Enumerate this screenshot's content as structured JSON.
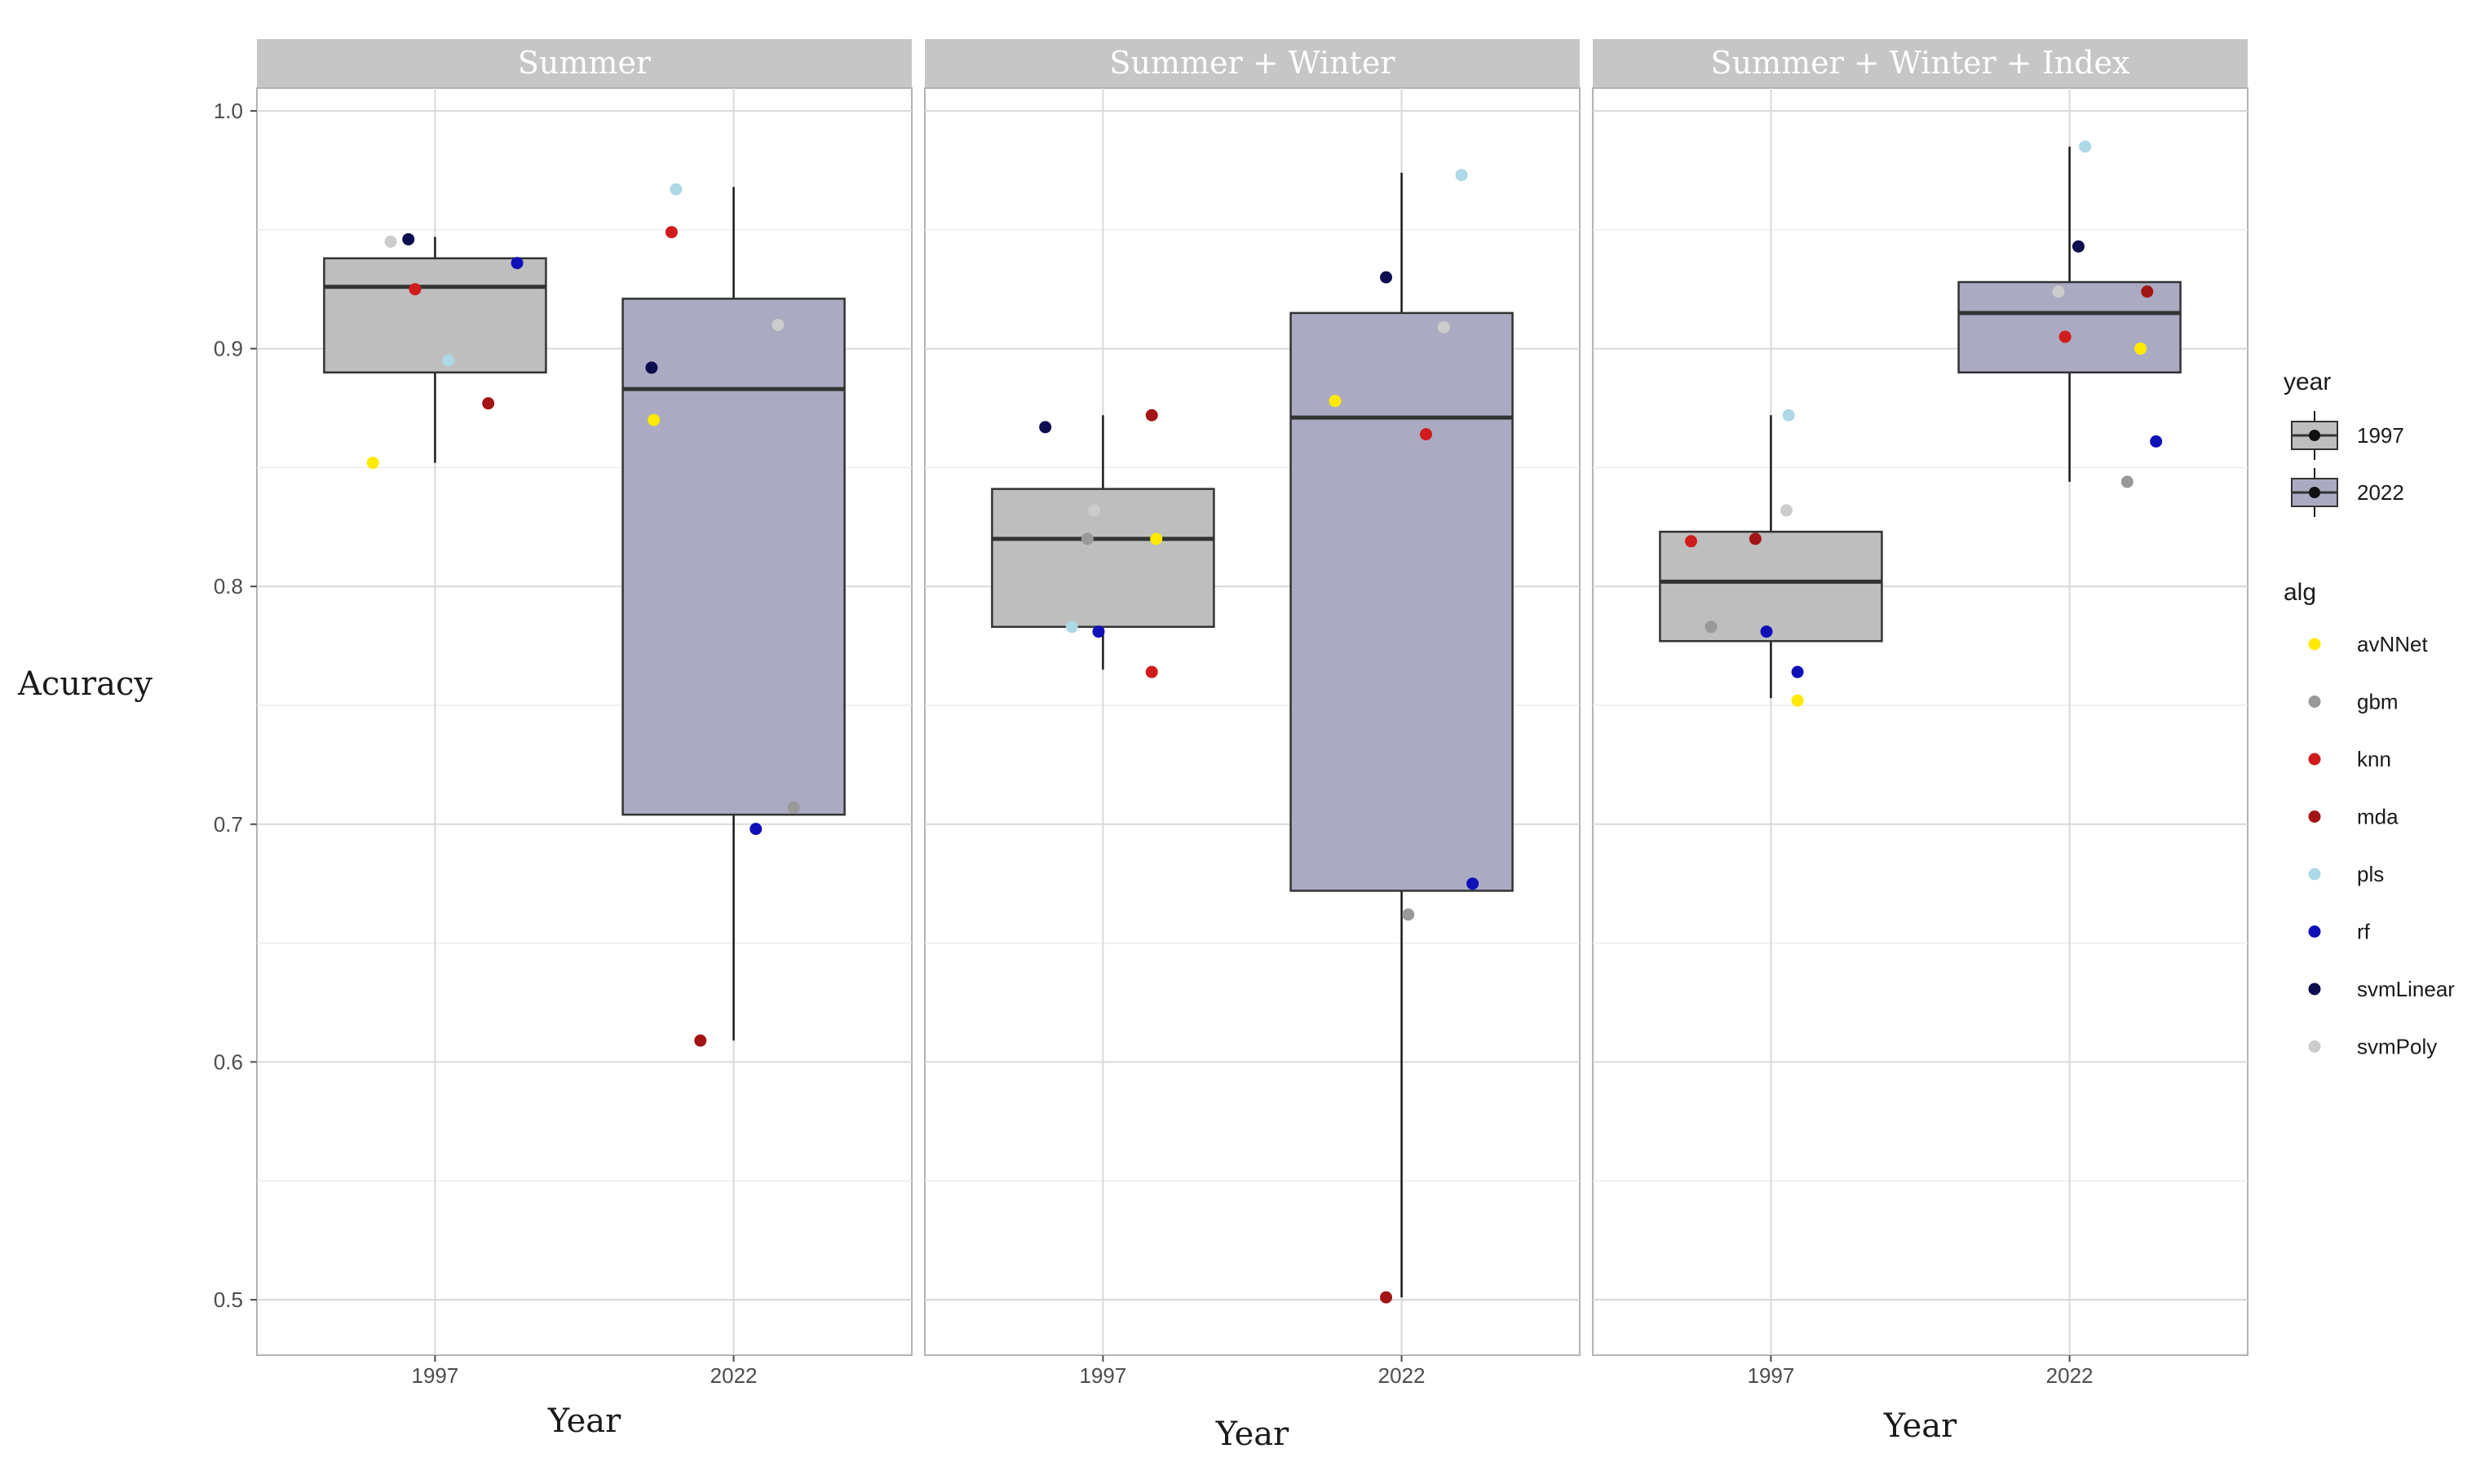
{
  "chart_data": {
    "type": "boxplot",
    "ylabel": "Acuracy",
    "xlabel": "Year",
    "ylim": [
      0.475,
      1.01
    ],
    "y_ticks": [
      "0.5",
      "0.6",
      "0.7",
      "0.8",
      "0.9",
      "1.0"
    ],
    "categories": [
      "1997",
      "2022"
    ],
    "grid": true,
    "panels": [
      {
        "title": "Summer",
        "boxes": [
          {
            "year": "1997",
            "min": 0.852,
            "q1": 0.89,
            "median": 0.926,
            "q3": 0.938,
            "max": 0.947
          },
          {
            "year": "2022",
            "min": 0.609,
            "q1": 0.704,
            "median": 0.883,
            "q3": 0.921,
            "max": 0.968
          }
        ],
        "points": [
          {
            "year": "1997",
            "alg": "avNNet",
            "value": 0.852,
            "jitter": -0.28
          },
          {
            "year": "1997",
            "alg": "svmPoly",
            "value": 0.945,
            "jitter": -0.2
          },
          {
            "year": "1997",
            "alg": "svmLinear",
            "value": 0.946,
            "jitter": -0.12
          },
          {
            "year": "1997",
            "alg": "knn",
            "value": 0.925,
            "jitter": -0.09
          },
          {
            "year": "1997",
            "alg": "pls",
            "value": 0.895,
            "jitter": 0.06
          },
          {
            "year": "1997",
            "alg": "mda",
            "value": 0.877,
            "jitter": 0.24
          },
          {
            "year": "1997",
            "alg": "rf",
            "value": 0.936,
            "jitter": 0.37
          },
          {
            "year": "2022",
            "alg": "svmLinear",
            "value": 0.892,
            "jitter": -0.37
          },
          {
            "year": "2022",
            "alg": "avNNet",
            "value": 0.87,
            "jitter": -0.36
          },
          {
            "year": "2022",
            "alg": "knn",
            "value": 0.949,
            "jitter": -0.28
          },
          {
            "year": "2022",
            "alg": "pls",
            "value": 0.967,
            "jitter": -0.26
          },
          {
            "year": "2022",
            "alg": "mda",
            "value": 0.609,
            "jitter": -0.15
          },
          {
            "year": "2022",
            "alg": "rf",
            "value": 0.698,
            "jitter": 0.1
          },
          {
            "year": "2022",
            "alg": "svmPoly",
            "value": 0.91,
            "jitter": 0.2
          },
          {
            "year": "2022",
            "alg": "gbm",
            "value": 0.707,
            "jitter": 0.27
          }
        ]
      },
      {
        "title": "Summer + Winter",
        "boxes": [
          {
            "year": "1997",
            "min": 0.765,
            "q1": 0.783,
            "median": 0.82,
            "q3": 0.841,
            "max": 0.872
          },
          {
            "year": "2022",
            "min": 0.501,
            "q1": 0.672,
            "median": 0.871,
            "q3": 0.915,
            "max": 0.974
          }
        ],
        "points": [
          {
            "year": "1997",
            "alg": "svmLinear",
            "value": 0.867,
            "jitter": -0.26
          },
          {
            "year": "1997",
            "alg": "pls",
            "value": 0.783,
            "jitter": -0.14
          },
          {
            "year": "1997",
            "alg": "gbm",
            "value": 0.82,
            "jitter": -0.07
          },
          {
            "year": "1997",
            "alg": "svmPoly",
            "value": 0.832,
            "jitter": -0.04
          },
          {
            "year": "1997",
            "alg": "rf",
            "value": 0.781,
            "jitter": -0.02
          },
          {
            "year": "1997",
            "alg": "knn",
            "value": 0.764,
            "jitter": 0.22
          },
          {
            "year": "1997",
            "alg": "mda",
            "value": 0.872,
            "jitter": 0.22
          },
          {
            "year": "1997",
            "alg": "avNNet",
            "value": 0.82,
            "jitter": 0.24
          },
          {
            "year": "2022",
            "alg": "avNNet",
            "value": 0.878,
            "jitter": -0.3
          },
          {
            "year": "2022",
            "alg": "mda",
            "value": 0.501,
            "jitter": -0.07
          },
          {
            "year": "2022",
            "alg": "svmLinear",
            "value": 0.93,
            "jitter": -0.07
          },
          {
            "year": "2022",
            "alg": "gbm",
            "value": 0.662,
            "jitter": 0.03
          },
          {
            "year": "2022",
            "alg": "knn",
            "value": 0.864,
            "jitter": 0.11
          },
          {
            "year": "2022",
            "alg": "svmPoly",
            "value": 0.909,
            "jitter": 0.19
          },
          {
            "year": "2022",
            "alg": "pls",
            "value": 0.973,
            "jitter": 0.27
          },
          {
            "year": "2022",
            "alg": "rf",
            "value": 0.675,
            "jitter": 0.32
          }
        ]
      },
      {
        "title": "Summer + Winter + Index",
        "boxes": [
          {
            "year": "1997",
            "min": 0.753,
            "q1": 0.777,
            "median": 0.802,
            "q3": 0.823,
            "max": 0.872
          },
          {
            "year": "2022",
            "min": 0.844,
            "q1": 0.89,
            "median": 0.915,
            "q3": 0.928,
            "max": 0.985
          }
        ],
        "points": [
          {
            "year": "1997",
            "alg": "knn",
            "value": 0.819,
            "jitter": -0.36
          },
          {
            "year": "1997",
            "alg": "gbm",
            "value": 0.783,
            "jitter": -0.27
          },
          {
            "year": "1997",
            "alg": "mda",
            "value": 0.82,
            "jitter": -0.07
          },
          {
            "year": "1997",
            "alg": "rf",
            "value": 0.781,
            "jitter": -0.02
          },
          {
            "year": "1997",
            "alg": "svmPoly",
            "value": 0.832,
            "jitter": 0.07
          },
          {
            "year": "1997",
            "alg": "pls",
            "value": 0.872,
            "jitter": 0.08
          },
          {
            "year": "1997",
            "alg": "avNNet",
            "value": 0.752,
            "jitter": 0.12
          },
          {
            "year": "1997",
            "alg": "rf",
            "value": 0.764,
            "jitter": 0.12
          },
          {
            "year": "2022",
            "alg": "svmPoly",
            "value": 0.924,
            "jitter": -0.05
          },
          {
            "year": "2022",
            "alg": "knn",
            "value": 0.905,
            "jitter": -0.02
          },
          {
            "year": "2022",
            "alg": "svmLinear",
            "value": 0.943,
            "jitter": 0.04
          },
          {
            "year": "2022",
            "alg": "pls",
            "value": 0.985,
            "jitter": 0.07
          },
          {
            "year": "2022",
            "alg": "gbm",
            "value": 0.844,
            "jitter": 0.26
          },
          {
            "year": "2022",
            "alg": "avNNet",
            "value": 0.9,
            "jitter": 0.32
          },
          {
            "year": "2022",
            "alg": "mda",
            "value": 0.924,
            "jitter": 0.35
          },
          {
            "year": "2022",
            "alg": "rf",
            "value": 0.861,
            "jitter": 0.39
          }
        ]
      }
    ],
    "fill_colors": {
      "1997": "#bebebe",
      "2022": "#aaaac2"
    },
    "alg_colors": {
      "avNNet": "#ffea00",
      "gbm": "#999999",
      "knn": "#d01c1c",
      "mda": "#a31515",
      "pls": "#add8e6",
      "rf": "#1010b8",
      "svmLinear": "#0c0c50",
      "svmPoly": "#cccccc"
    },
    "legend_year": {
      "title": "year",
      "items": [
        "1997",
        "2022"
      ]
    },
    "legend_alg": {
      "title": "alg",
      "items": [
        "avNNet",
        "gbm",
        "knn",
        "mda",
        "pls",
        "rf",
        "svmLinear",
        "svmPoly"
      ]
    }
  }
}
